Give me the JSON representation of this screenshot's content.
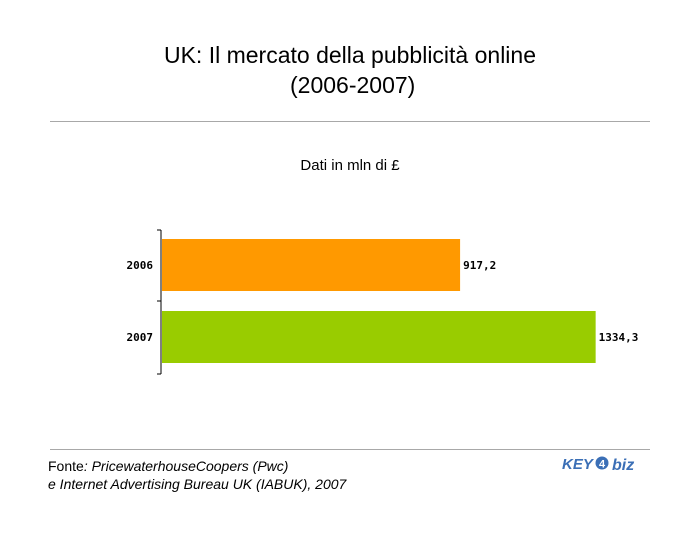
{
  "header": {
    "title_line1": "UK: Il mercato della pubblicità online",
    "title_line2": "(2006-2007)"
  },
  "chart_data": {
    "type": "bar",
    "orientation": "horizontal",
    "title": "UK: Il mercato della pubblicità online (2006-2007)",
    "subtitle": "Dati in mln di £",
    "categories": [
      "2006",
      "2007"
    ],
    "values": [
      917.2,
      1334.3
    ],
    "value_labels": [
      "917,2",
      "1334,3"
    ],
    "colors": [
      "#ff9900",
      "#99cc00"
    ],
    "xlim": [
      0,
      1400
    ],
    "grid": false,
    "legend": "none"
  },
  "footer": {
    "source_prefix": "Fonte",
    "source_line1": ": PricewaterhouseCoopers (Pwc)",
    "source_line2": "e Internet Advertising Bureau UK (IABUK), 2007",
    "logo_text_key": "KEY",
    "logo_text_num": "4",
    "logo_text_biz": "biz"
  }
}
